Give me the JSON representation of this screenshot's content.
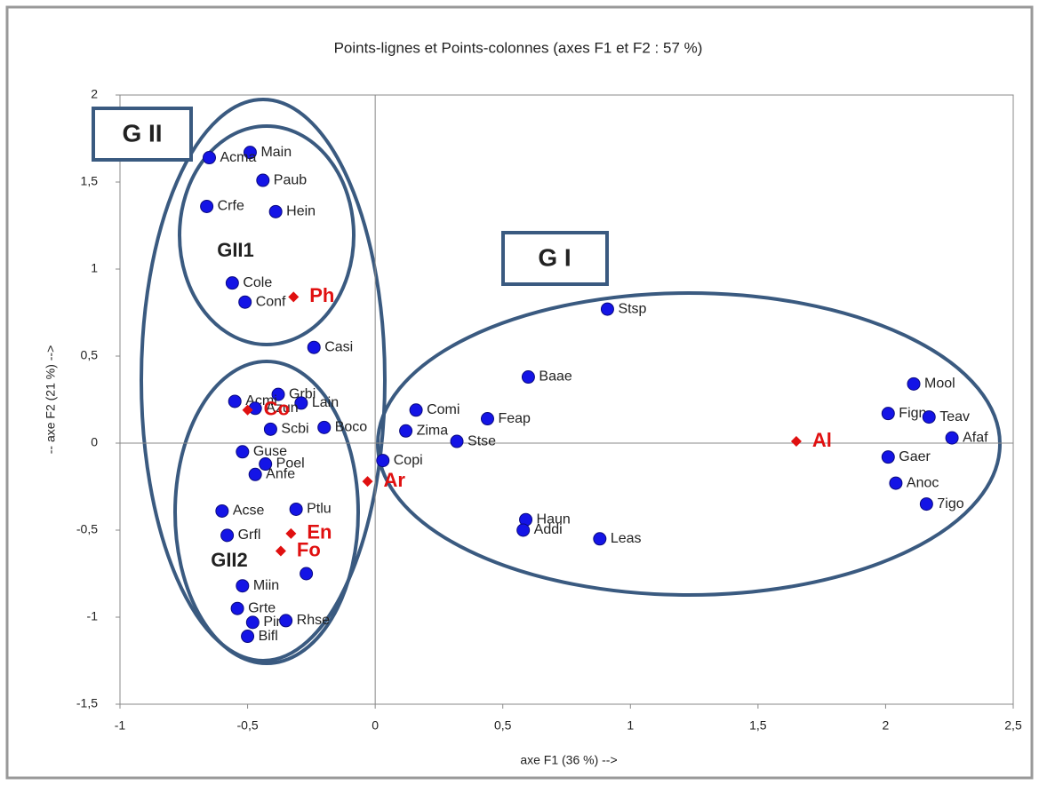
{
  "chart_data": {
    "type": "scatter",
    "title": "Points-lignes et Points-colonnes (axes F1 et F2 : 57 %)",
    "x_label": "axe F1 (36 %) -->",
    "y_label": "-- axe F2 (21 %) -->",
    "xlim": [
      -1,
      2.5
    ],
    "ylim": [
      -1.5,
      2
    ],
    "xticks": [
      -1,
      {
        "value": -0.5,
        "label": "-0,5"
      },
      0,
      {
        "value": 0.5,
        "label": "0,5"
      },
      1,
      {
        "value": 1.5,
        "label": "1,5"
      },
      2,
      {
        "value": 2.5,
        "label": "2,5"
      }
    ],
    "yticks": [
      {
        "value": -1.5,
        "label": "-1,5"
      },
      -1,
      {
        "value": -0.5,
        "label": "-0,5"
      },
      0,
      {
        "value": 0.5,
        "label": "0,5"
      },
      1,
      {
        "value": 1.5,
        "label": "1,5"
      },
      2
    ],
    "grid": false,
    "series": [
      {
        "color": "#1414e6",
        "marker": "circle",
        "labels": [
          "Main",
          "Acma",
          "Paub",
          "Crfe",
          "Hein",
          "Cole",
          "Conf",
          "Casi",
          "Stsp",
          "Baae",
          "Comi",
          "Feap",
          "Zima",
          "Stse",
          "Copi",
          "Mool",
          "Fign",
          "Teav",
          "Gaer",
          "Afaf",
          "Anoc",
          "7igo",
          "Haun",
          "Addi",
          "Leas",
          "Grbi",
          "Acmi",
          "Lain",
          "Azun",
          "Scbi",
          "Boco",
          "Guse",
          "Poel",
          "Anfe",
          "Acse",
          "Ptlu",
          "Grfl",
          "Miin",
          null,
          "Grte",
          "Pire",
          "Rhse",
          "Bifl"
        ],
        "x": [
          -0.49,
          -0.65,
          -0.44,
          -0.66,
          -0.39,
          -0.56,
          -0.51,
          -0.24,
          0.91,
          0.6,
          0.16,
          0.44,
          0.12,
          0.32,
          0.03,
          2.11,
          2.01,
          2.17,
          2.01,
          2.26,
          2.04,
          2.16,
          0.59,
          0.58,
          0.88,
          -0.38,
          -0.55,
          -0.29,
          -0.47,
          -0.41,
          -0.2,
          -0.52,
          -0.43,
          -0.47,
          -0.6,
          -0.31,
          -0.58,
          -0.52,
          -0.27,
          -0.54,
          -0.48,
          -0.35,
          -0.5
        ],
        "y": [
          1.67,
          1.64,
          1.51,
          1.36,
          1.33,
          0.92,
          0.81,
          0.55,
          0.77,
          0.38,
          0.19,
          0.14,
          0.07,
          0.01,
          -0.1,
          0.34,
          0.17,
          0.15,
          -0.08,
          0.03,
          -0.23,
          -0.35,
          -0.44,
          -0.5,
          -0.55,
          0.28,
          0.24,
          0.23,
          0.2,
          0.08,
          0.09,
          -0.05,
          -0.12,
          -0.18,
          -0.39,
          -0.38,
          -0.53,
          -0.82,
          -0.75,
          -0.95,
          -1.03,
          -1.02,
          -1.11
        ]
      },
      {
        "color": "#e01010",
        "marker": "diamond",
        "labels": [
          "Ph",
          "Co",
          "Ar",
          "En",
          "Fo",
          "Al"
        ],
        "x": [
          -0.32,
          -0.5,
          -0.03,
          -0.33,
          -0.37,
          1.65
        ],
        "y": [
          0.84,
          0.19,
          -0.22,
          -0.52,
          -0.62,
          0.01
        ]
      }
    ],
    "annotations": [
      "G II",
      "G I",
      "GII1",
      "GII2"
    ]
  }
}
